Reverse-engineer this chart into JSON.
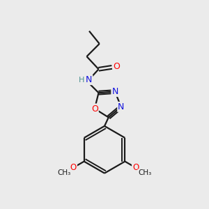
{
  "background_color": "#ebebeb",
  "bond_color": "#1a1a1a",
  "atom_colors": {
    "O": "#ff0000",
    "N": "#1010dd",
    "H": "#4a9090",
    "C": "#1a1a1a"
  },
  "figsize": [
    3.0,
    3.0
  ],
  "dpi": 100
}
